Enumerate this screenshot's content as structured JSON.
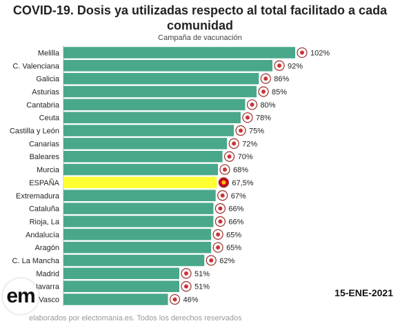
{
  "title": "COVID-19. Dosis ya utilizadas respecto al total facilitado a cada comunidad",
  "subtitle": "Campaña de vacunación",
  "date": "15-ENE-2021",
  "footer": "elaborados por electomania.es. Todos los derechos reservados",
  "logo_text": "em",
  "colors": {
    "bar": "#4aa88a",
    "highlight": "#ffff33",
    "text": "#222222"
  },
  "chart_data": {
    "type": "bar",
    "orientation": "horizontal",
    "categories": [
      "Melilla",
      "C. Valenciana",
      "Galicia",
      "Asturias",
      "Cantabria",
      "Ceuta",
      "Castilla y León",
      "Canarias",
      "Baleares",
      "Murcia",
      "ESPAÑA",
      "Extremadura",
      "Cataluña",
      "Rioja, La",
      "Andalucía",
      "Aragón",
      "C. La Mancha",
      "Madrid",
      "Navarra",
      "País Vasco"
    ],
    "values": [
      102,
      92,
      86,
      85,
      80,
      78,
      75,
      72,
      70,
      68,
      67.5,
      67,
      66,
      66,
      65,
      65,
      62,
      51,
      51,
      46
    ],
    "value_labels": [
      "102%",
      "92%",
      "86%",
      "85%",
      "80%",
      "78%",
      "75%",
      "72%",
      "70%",
      "68%",
      "67,5%",
      "67%",
      "66%",
      "66%",
      "65%",
      "65%",
      "62%",
      "51%",
      "51%",
      "46%"
    ],
    "highlight": "ESPAÑA",
    "xlim": [
      0,
      102
    ],
    "flag_icons": [
      "melilla-flag-icon",
      "valencia-flag-icon",
      "galicia-flag-icon",
      "asturias-flag-icon",
      "cantabria-flag-icon",
      "ceuta-flag-icon",
      "castilla-leon-flag-icon",
      "canarias-flag-icon",
      "baleares-flag-icon",
      "murcia-flag-icon",
      "spain-flag-icon",
      "extremadura-flag-icon",
      "cataluna-flag-icon",
      "rioja-flag-icon",
      "andalucia-flag-icon",
      "aragon-flag-icon",
      "castilla-la-mancha-flag-icon",
      "madrid-flag-icon",
      "navarra-flag-icon",
      "pais-vasco-flag-icon"
    ]
  }
}
